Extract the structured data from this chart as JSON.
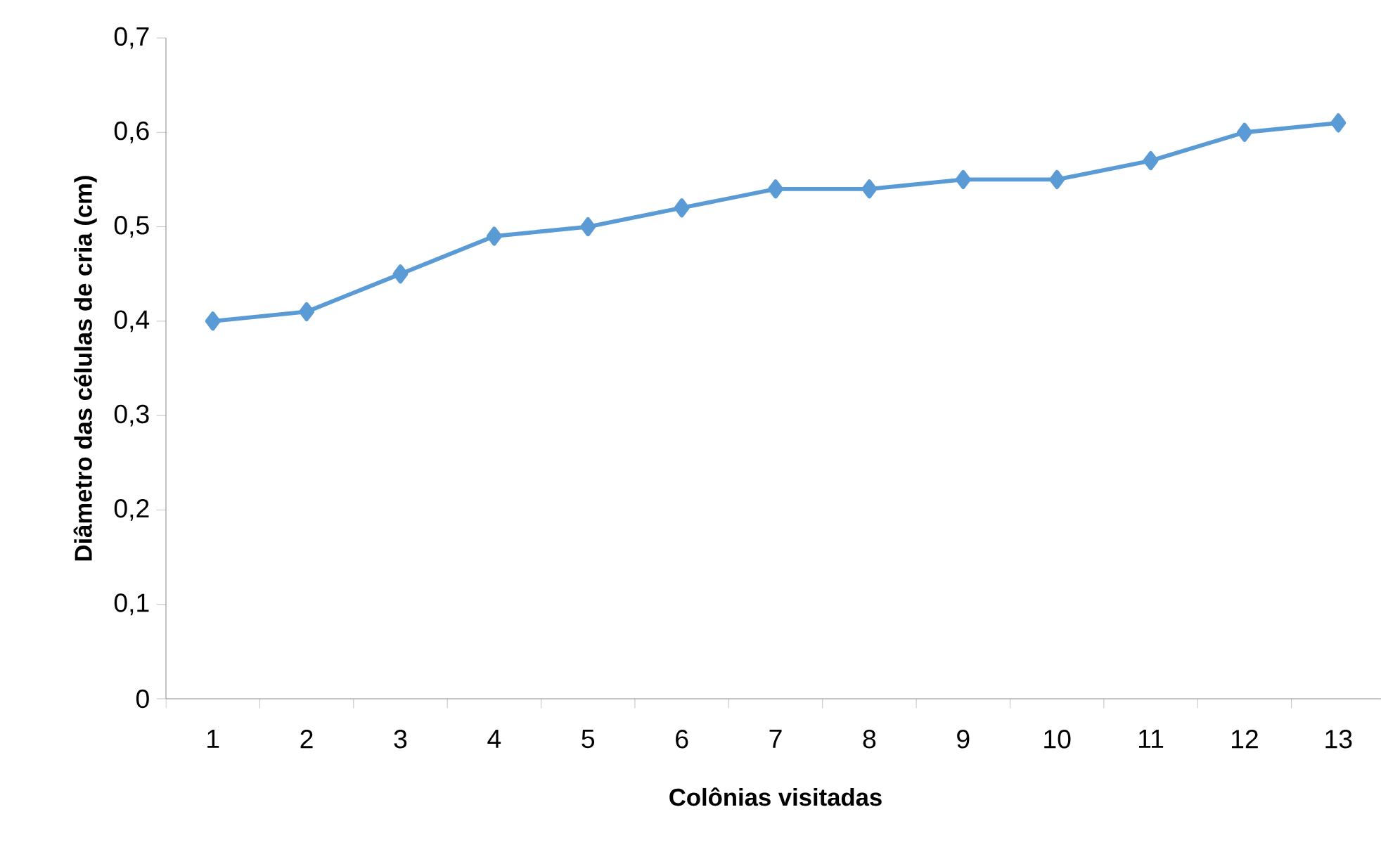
{
  "chart_data": {
    "type": "line",
    "xlabel": "Colônias visitadas",
    "ylabel": "Diâmetro das células de cria (cm)",
    "categories": [
      "1",
      "2",
      "3",
      "4",
      "5",
      "6",
      "7",
      "8",
      "9",
      "10",
      "11",
      "12",
      "13"
    ],
    "series": [
      {
        "color": "#5b9bd5",
        "values": [
          0.4,
          0.41,
          0.45,
          0.49,
          0.5,
          0.52,
          0.54,
          0.54,
          0.55,
          0.55,
          0.57,
          0.6,
          0.61
        ]
      }
    ],
    "ylim": [
      0,
      0.7
    ],
    "yticks": [
      0,
      {
        "value": 0.1,
        "label": "0,1"
      },
      {
        "value": 0.2,
        "label": "0,2"
      },
      {
        "value": 0.3,
        "label": "0,3"
      },
      {
        "value": 0.4,
        "label": "0,4"
      },
      {
        "value": 0.5,
        "label": "0,5"
      },
      {
        "value": 0.6,
        "label": "0,6"
      },
      {
        "value": 0.7,
        "label": "0,7"
      }
    ],
    "marker": "diamond",
    "line_style": "solid"
  }
}
